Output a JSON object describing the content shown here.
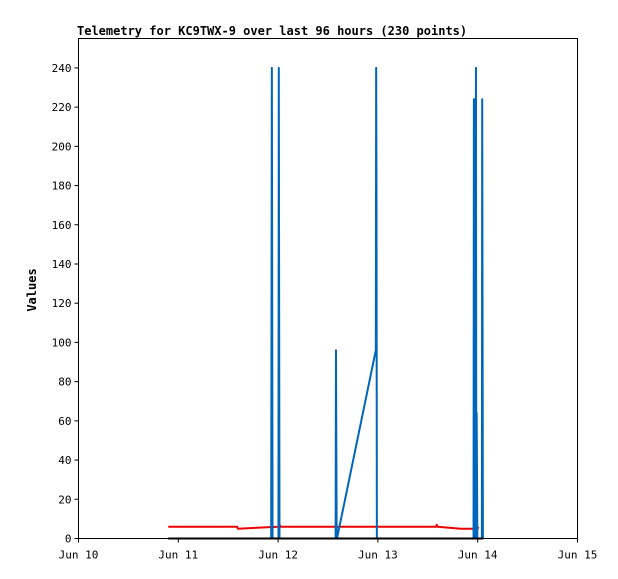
{
  "chart_data": {
    "type": "line",
    "title": "Telemetry for KC9TWX-9 over last 96 hours (230 points)",
    "ylabel": "Values",
    "xlabel": "",
    "xlim": [
      "2024-06-10T00:00",
      "2024-06-15T00:00"
    ],
    "ylim": [
      0,
      255
    ],
    "x_ticks": [
      {
        "label": "Jun 10",
        "value": "2024-06-10T00:00"
      },
      {
        "label": "Jun 11",
        "value": "2024-06-11T00:00"
      },
      {
        "label": "Jun 12",
        "value": "2024-06-12T00:00"
      },
      {
        "label": "Jun 13",
        "value": "2024-06-13T00:00"
      },
      {
        "label": "Jun 14",
        "value": "2024-06-14T00:00"
      },
      {
        "label": "Jun 15",
        "value": "2024-06-15T00:00"
      }
    ],
    "y_ticks": [
      0,
      20,
      40,
      60,
      80,
      100,
      120,
      140,
      160,
      180,
      200,
      220,
      240
    ],
    "grid": false,
    "legend": "none",
    "series": [
      {
        "color": "#ee0000",
        "x": [
          "2024-06-10T21:35",
          "2024-06-11T14:10",
          "2024-06-11T14:20",
          "2024-06-12T00:00",
          "2024-06-12T00:20",
          "2024-06-12T00:40",
          "2024-06-13T12:00",
          "2024-06-13T14:00",
          "2024-06-13T14:10",
          "2024-06-13T14:20",
          "2024-06-13T20:00",
          "2024-06-13T23:00",
          "2024-06-13T23:40",
          "2024-06-14T00:00",
          "2024-06-14T00:10"
        ],
        "y": [
          6,
          6,
          5,
          6,
          7,
          6,
          6,
          6,
          7,
          6,
          5,
          5,
          6,
          5,
          6
        ]
      },
      {
        "color": "#0066bb",
        "x": [
          "2024-06-10T21:35",
          "2024-06-11T22:20",
          "2024-06-11T22:25",
          "2024-06-11T22:30",
          "2024-06-11T22:35",
          "2024-06-11T22:40",
          "2024-06-12T00:05",
          "2024-06-12T00:10",
          "2024-06-12T00:15",
          "2024-06-12T00:20",
          "2024-06-12T13:50",
          "2024-06-12T13:55",
          "2024-06-12T14:00",
          "2024-06-12T14:05",
          "2024-06-12T14:10",
          "2024-06-12T23:30",
          "2024-06-12T23:35",
          "2024-06-12T23:40",
          "2024-06-12T23:45",
          "2024-06-12T23:50",
          "2024-06-13T23:00",
          "2024-06-13T23:05",
          "2024-06-13T23:10",
          "2024-06-13T23:15",
          "2024-06-13T23:20",
          "2024-06-13T23:25",
          "2024-06-13T23:30",
          "2024-06-13T23:35",
          "2024-06-13T23:40",
          "2024-06-13T23:45",
          "2024-06-13T23:50",
          "2024-06-13T23:55",
          "2024-06-14T00:00",
          "2024-06-14T01:00",
          "2024-06-14T01:05",
          "2024-06-14T01:10",
          "2024-06-14T01:15",
          "2024-06-14T01:20"
        ],
        "y": [
          0,
          0,
          120,
          240,
          120,
          0,
          0,
          240,
          120,
          0,
          0,
          96,
          48,
          0,
          0,
          96,
          240,
          168,
          0,
          0,
          0,
          224,
          224,
          0,
          192,
          0,
          120,
          240,
          0,
          64,
          32,
          0,
          0,
          0,
          224,
          112,
          0,
          0
        ]
      },
      {
        "color": "#000000",
        "x": [
          "2024-06-10T21:35",
          "2024-06-14T01:20"
        ],
        "y": [
          0,
          0
        ]
      }
    ]
  }
}
